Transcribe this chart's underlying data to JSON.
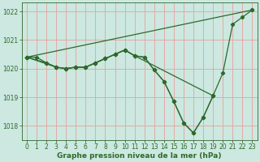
{
  "xlabel": "Graphe pression niveau de la mer (hPa)",
  "background_color": "#cce8e0",
  "grid_color": "#e8a0a0",
  "line_color": "#2d6a2d",
  "ylim": [
    1017.5,
    1022.3
  ],
  "xlim": [
    -0.5,
    23.5
  ],
  "yticks": [
    1018,
    1019,
    1020,
    1021,
    1022
  ],
  "xticks": [
    0,
    1,
    2,
    3,
    4,
    5,
    6,
    7,
    8,
    9,
    10,
    11,
    12,
    13,
    14,
    15,
    16,
    17,
    18,
    19,
    20,
    21,
    22,
    23
  ],
  "lines": [
    {
      "x": [
        0,
        1,
        2,
        3,
        4,
        5,
        6,
        7,
        8,
        9,
        10,
        11,
        12,
        13,
        14,
        15,
        16,
        17,
        18,
        19,
        20,
        21,
        22,
        23
      ],
      "y": [
        1020.4,
        1020.4,
        1020.2,
        1020.05,
        1020.0,
        1020.05,
        1020.05,
        1020.2,
        1020.35,
        1020.5,
        1020.65,
        1020.45,
        1020.4,
        1019.95,
        1019.55,
        1018.85,
        1018.1,
        1017.75,
        1018.3,
        1019.05,
        1019.85,
        1021.55,
        1021.8,
        1022.05
      ]
    },
    {
      "x": [
        0,
        23
      ],
      "y": [
        1020.4,
        1022.05
      ]
    },
    {
      "x": [
        0,
        3,
        4,
        5,
        6,
        7,
        8,
        9,
        10,
        11,
        12,
        13,
        14,
        15,
        16,
        17,
        18,
        19
      ],
      "y": [
        1020.4,
        1020.05,
        1020.0,
        1020.05,
        1020.05,
        1020.2,
        1020.35,
        1020.5,
        1020.65,
        1020.45,
        1020.4,
        1019.95,
        1019.55,
        1018.85,
        1018.1,
        1017.75,
        1018.3,
        1019.05
      ]
    },
    {
      "x": [
        0,
        2,
        3,
        4,
        5,
        6,
        7,
        8,
        9,
        10,
        11,
        19
      ],
      "y": [
        1020.4,
        1020.2,
        1020.05,
        1020.0,
        1020.05,
        1020.05,
        1020.2,
        1020.35,
        1020.5,
        1020.65,
        1020.45,
        1019.05
      ]
    }
  ],
  "tick_fontsize": 5.5,
  "label_fontsize": 6.5,
  "marker": "D",
  "markersize": 2.2,
  "linewidth": 0.9
}
